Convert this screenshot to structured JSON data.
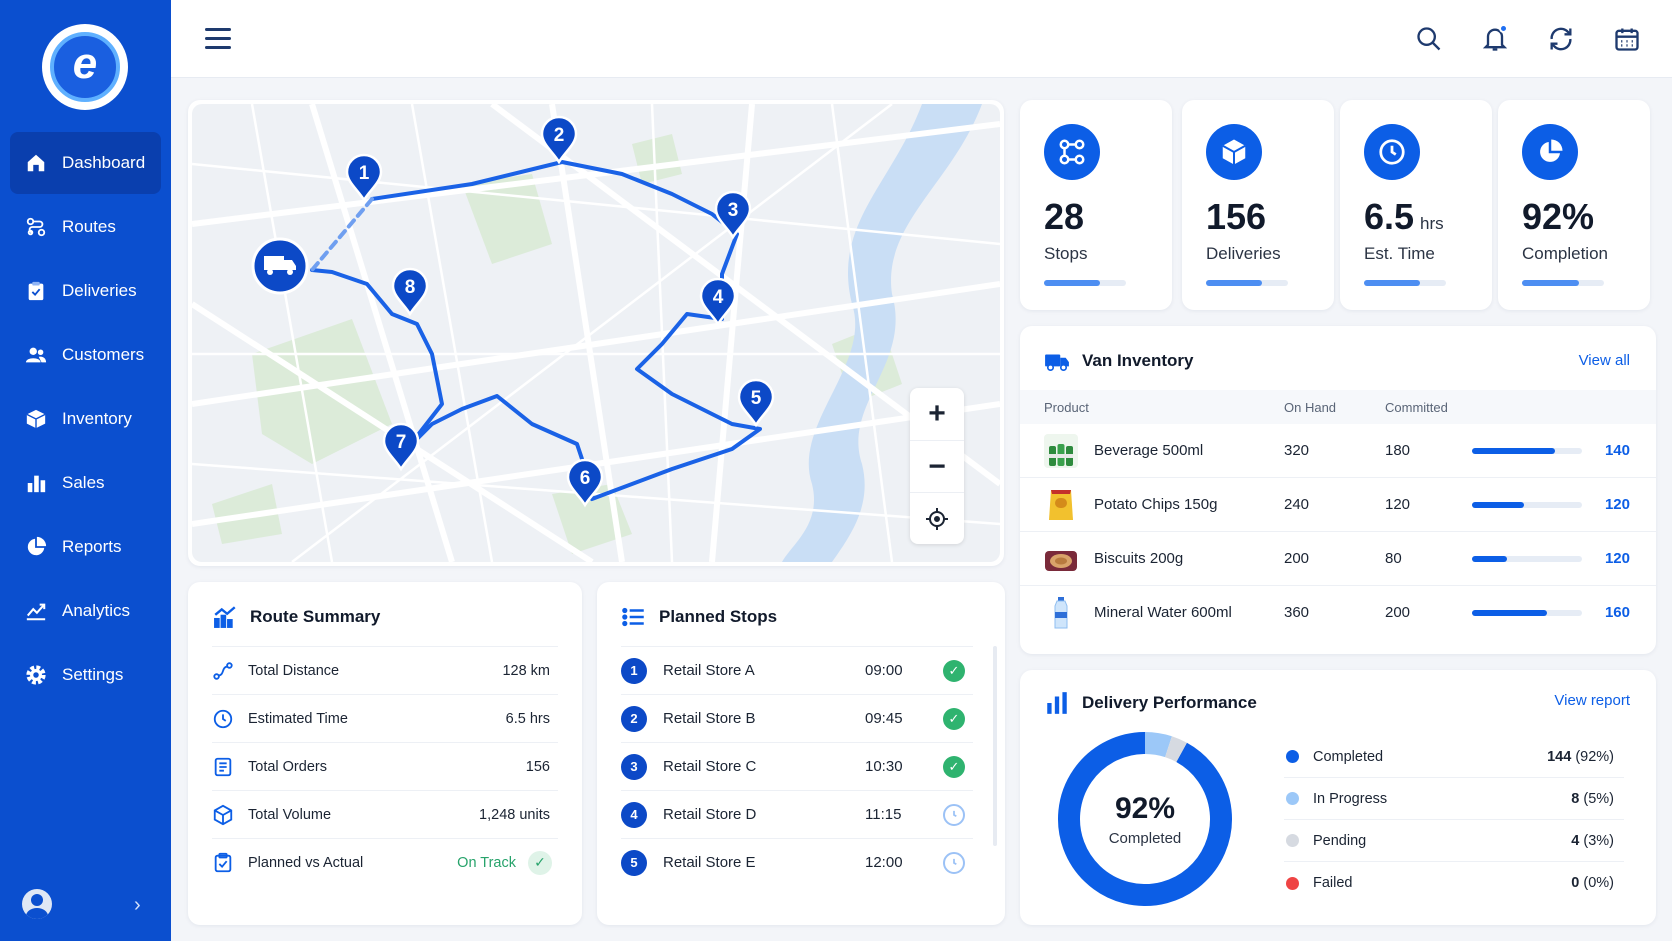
{
  "sidebar": {
    "logo_letter": "e",
    "items": [
      {
        "label": "Dashboard",
        "icon": "home-icon",
        "active": true
      },
      {
        "label": "Routes",
        "icon": "route-icon"
      },
      {
        "label": "Deliveries",
        "icon": "clipboard-icon"
      },
      {
        "label": "Customers",
        "icon": "users-icon"
      },
      {
        "label": "Inventory",
        "icon": "box-icon"
      },
      {
        "label": "Sales",
        "icon": "bar-chart-icon"
      },
      {
        "label": "Reports",
        "icon": "pie-chart-icon"
      },
      {
        "label": "Analytics",
        "icon": "trend-icon"
      },
      {
        "label": "Settings",
        "icon": "gear-icon"
      }
    ],
    "collapse_glyph": "›"
  },
  "topbar": {
    "icons": [
      "search-icon",
      "bell-icon",
      "refresh-icon",
      "calendar-icon"
    ]
  },
  "map": {
    "stops": [
      "1",
      "2",
      "3",
      "4",
      "5",
      "6",
      "7",
      "8"
    ],
    "controls": {
      "zoom_in": "+",
      "zoom_out": "−"
    }
  },
  "kpis": [
    {
      "value": "28",
      "unit": "",
      "label": "Stops",
      "progress": 0.68,
      "icon": "route-icon"
    },
    {
      "value": "156",
      "unit": "",
      "label": "Deliveries",
      "progress": 0.68,
      "icon": "box-icon"
    },
    {
      "value": "6.5",
      "unit": "hrs",
      "label": "Est. Time",
      "progress": 0.68,
      "icon": "clock-icon"
    },
    {
      "value": "92%",
      "unit": "",
      "label": "Completion",
      "progress": 0.7,
      "icon": "pie-chart-icon"
    }
  ],
  "inventory": {
    "title": "Van Inventory",
    "link": "View all",
    "columns": {
      "product": "Product",
      "on_hand": "On Hand",
      "committed": "Committed"
    },
    "rows": [
      {
        "name": "Beverage 500ml",
        "on_hand": "320",
        "committed": "180",
        "available": "140",
        "fill": 0.75,
        "img": "bottles-icon"
      },
      {
        "name": "Potato Chips 150g",
        "on_hand": "240",
        "committed": "120",
        "available": "120",
        "fill": 0.47,
        "img": "chips-icon"
      },
      {
        "name": "Biscuits 200g",
        "on_hand": "200",
        "committed": "80",
        "available": "120",
        "fill": 0.32,
        "img": "biscuits-icon"
      },
      {
        "name": "Mineral Water 600ml",
        "on_hand": "360",
        "committed": "200",
        "available": "160",
        "fill": 0.68,
        "img": "water-bottle-icon"
      }
    ]
  },
  "route_summary": {
    "title": "Route Summary",
    "rows": [
      {
        "label": "Total Distance",
        "value": "128 km",
        "icon": "distance-icon"
      },
      {
        "label": "Estimated Time",
        "value": "6.5 hrs",
        "icon": "clock-icon"
      },
      {
        "label": "Total Orders",
        "value": "156",
        "icon": "orders-icon"
      },
      {
        "label": "Total Volume",
        "value": "1,248 units",
        "icon": "box-icon"
      },
      {
        "label": "Planned vs Actual",
        "value": "On Track",
        "icon": "clipboard-check-icon"
      }
    ],
    "check_glyph": "✓"
  },
  "planned_stops": {
    "title": "Planned Stops",
    "rows": [
      {
        "num": "1",
        "name": "Retail Store A",
        "time": "09:00",
        "status": "done"
      },
      {
        "num": "2",
        "name": "Retail Store B",
        "time": "09:45",
        "status": "done"
      },
      {
        "num": "3",
        "name": "Retail Store C",
        "time": "10:30",
        "status": "done"
      },
      {
        "num": "4",
        "name": "Retail Store D",
        "time": "11:15",
        "status": "pending"
      },
      {
        "num": "5",
        "name": "Retail Store E",
        "time": "12:00",
        "status": "pending"
      }
    ]
  },
  "performance": {
    "title": "Delivery Performance",
    "link": "View report",
    "center_value": "92%",
    "center_label": "Completed",
    "legend": [
      {
        "label": "Completed",
        "count": "144",
        "pct": "(92%)",
        "color": "#0c5ee6",
        "share": 0.92
      },
      {
        "label": "In Progress",
        "count": "8",
        "pct": "(5%)",
        "color": "#9cc8f8",
        "share": 0.05
      },
      {
        "label": "Pending",
        "count": "4",
        "pct": "(3%)",
        "color": "#d6dae1",
        "share": 0.03
      },
      {
        "label": "Failed",
        "count": "0",
        "pct": "(0%)",
        "color": "#ef4444",
        "share": 0
      }
    ]
  },
  "colors": {
    "primary": "#0c5ee6",
    "sidebar": "#0b4fcf",
    "success": "#27a36b"
  }
}
